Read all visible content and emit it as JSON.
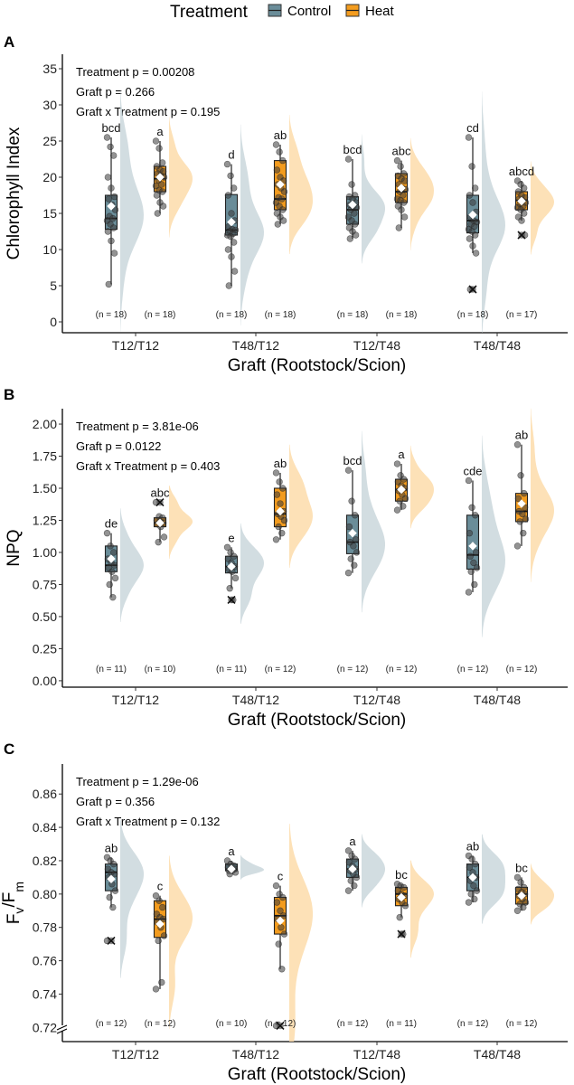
{
  "legend": {
    "title": "Treatment",
    "items": [
      {
        "label": "Control",
        "color": "#6a8d99"
      },
      {
        "label": "Heat",
        "color": "#f39c1f"
      }
    ]
  },
  "colors": {
    "control_fill": "#6a8d99",
    "heat_fill": "#f39c1f",
    "control_violin": "#c7d5da",
    "heat_violin": "#fcd9a5"
  },
  "chart_data": [
    {
      "type": "boxplot",
      "panel": "A",
      "ylabel": "Chlorophyll Index",
      "xlabel": "Graft (Rootstock/Scion)",
      "ylim": [
        -1.5,
        37
      ],
      "yticks": [
        0,
        5,
        10,
        15,
        20,
        25,
        30,
        35
      ],
      "ytick_labels": [
        "0",
        "5",
        "10",
        "15",
        "20",
        "25",
        "30",
        "35"
      ],
      "axis_break": false,
      "stats": [
        "Treatment p = 0.00208",
        "Graft p = 0.266",
        "Graft x Treatment p =  0.195"
      ],
      "categories": [
        "T12/T12",
        "T48/T12",
        "T12/T48",
        "T48/T48"
      ],
      "groups": [
        {
          "category": "T12/T12",
          "treatment": "Control",
          "q1": 12.8,
          "median": 14.3,
          "q3": 17.5,
          "whisker_low": 5.2,
          "whisker_high": 25.5,
          "mean": 16.0,
          "outliers": [],
          "letter": "bcd",
          "n_label": "(n = 18)",
          "points": [
            25.5,
            24.2,
            23.0,
            20.0,
            18.5,
            17.3,
            17.0,
            16.2,
            15.5,
            14.6,
            14.3,
            14.0,
            13.5,
            13.0,
            12.5,
            11.2,
            9.5,
            5.2
          ]
        },
        {
          "category": "T12/T12",
          "treatment": "Heat",
          "q1": 18.0,
          "median": 19.8,
          "q3": 21.5,
          "whisker_low": 15.0,
          "whisker_high": 25.0,
          "mean": 20.0,
          "outliers": [],
          "letter": "a",
          "n_label": "(n = 18)",
          "points": [
            25.0,
            24.0,
            22.0,
            21.5,
            21.0,
            20.8,
            20.5,
            20.2,
            20.0,
            19.6,
            19.0,
            18.8,
            18.2,
            18.0,
            17.5,
            16.5,
            16.0,
            15.0
          ]
        },
        {
          "category": "T48/T12",
          "treatment": "Control",
          "q1": 12.0,
          "median": 12.7,
          "q3": 17.6,
          "whisker_low": 5.0,
          "whisker_high": 21.8,
          "mean": 13.8,
          "outliers": [],
          "letter": "d",
          "n_label": "(n = 18)",
          "points": [
            21.8,
            20.2,
            18.5,
            17.5,
            15.0,
            14.0,
            13.2,
            12.8,
            12.7,
            12.5,
            12.2,
            12.0,
            11.8,
            11.0,
            10.0,
            9.0,
            7.0,
            5.0
          ]
        },
        {
          "category": "T48/T12",
          "treatment": "Heat",
          "q1": 15.5,
          "median": 17.0,
          "q3": 22.3,
          "whisker_low": 13.5,
          "whisker_high": 24.5,
          "mean": 19.0,
          "outliers": [],
          "letter": "ab",
          "n_label": "(n = 18)",
          "points": [
            24.5,
            23.5,
            22.3,
            21.0,
            20.0,
            19.5,
            19.0,
            18.5,
            18.0,
            17.2,
            17.0,
            16.5,
            16.0,
            15.5,
            15.0,
            14.5,
            14.0,
            13.5
          ]
        },
        {
          "category": "T12/T48",
          "treatment": "Control",
          "q1": 13.5,
          "median": 15.5,
          "q3": 17.3,
          "whisker_low": 11.5,
          "whisker_high": 22.5,
          "mean": 16.2,
          "outliers": [],
          "letter": "bcd",
          "n_label": "(n = 18)",
          "points": [
            22.5,
            19.0,
            17.5,
            17.3,
            17.0,
            16.5,
            16.2,
            16.0,
            15.8,
            15.5,
            15.0,
            14.5,
            14.0,
            13.5,
            13.0,
            12.5,
            12.0,
            11.5
          ]
        },
        {
          "category": "T12/T48",
          "treatment": "Heat",
          "q1": 16.5,
          "median": 18.0,
          "q3": 20.5,
          "whisker_low": 13.0,
          "whisker_high": 22.3,
          "mean": 18.5,
          "outliers": [],
          "letter": "abc",
          "n_label": "(n = 18)",
          "points": [
            22.3,
            21.5,
            20.5,
            20.2,
            19.8,
            19.5,
            19.0,
            18.5,
            18.3,
            18.0,
            17.5,
            17.0,
            16.8,
            16.5,
            16.0,
            15.5,
            14.5,
            13.0
          ]
        },
        {
          "category": "T48/T48",
          "treatment": "Control",
          "q1": 12.3,
          "median": 14.0,
          "q3": 17.5,
          "whisker_low": 9.5,
          "whisker_high": 25.5,
          "mean": 14.8,
          "outliers": [
            4.5
          ],
          "letter": "cd",
          "n_label": "(n = 18)",
          "points": [
            25.5,
            21.5,
            18.5,
            17.5,
            16.5,
            15.2,
            14.5,
            14.0,
            13.8,
            13.5,
            13.2,
            12.8,
            12.5,
            12.0,
            11.5,
            10.5,
            9.5,
            4.5
          ]
        },
        {
          "category": "T48/T48",
          "treatment": "Heat",
          "q1": 15.5,
          "median": 16.8,
          "q3": 18.0,
          "whisker_low": 14.0,
          "whisker_high": 19.5,
          "mean": 16.7,
          "outliers": [
            12.0
          ],
          "letter": "abcd",
          "n_label": "(n = 17)",
          "points": [
            19.5,
            19.0,
            18.5,
            18.0,
            17.5,
            17.2,
            17.0,
            16.8,
            16.5,
            16.3,
            16.0,
            15.8,
            15.5,
            15.0,
            14.5,
            14.0,
            12.0
          ]
        }
      ]
    },
    {
      "type": "boxplot",
      "panel": "B",
      "ylabel": "NPQ",
      "xlabel": "Graft (Rootstock/Scion)",
      "ylim": [
        -0.05,
        2.12
      ],
      "yticks": [
        0,
        0.25,
        0.5,
        0.75,
        1.0,
        1.25,
        1.5,
        1.75,
        2.0
      ],
      "ytick_labels": [
        "0.00",
        "0.25",
        "0.50",
        "0.75",
        "1.00",
        "1.25",
        "1.50",
        "1.75",
        "2.00"
      ],
      "axis_break": false,
      "stats": [
        "Treatment p = 3.81e-06",
        "Graft p = 0.0122",
        "Graft x Treatment p =  0.403"
      ],
      "categories": [
        "T12/T12",
        "T48/T12",
        "T12/T48",
        "T48/T48"
      ],
      "groups": [
        {
          "category": "T12/T12",
          "treatment": "Control",
          "q1": 0.85,
          "median": 0.9,
          "q3": 1.05,
          "whisker_low": 0.65,
          "whisker_high": 1.15,
          "mean": 0.95,
          "outliers": [],
          "letter": "de",
          "n_label": "(n = 11)",
          "points": [
            1.15,
            1.05,
            1.0,
            0.95,
            0.92,
            0.9,
            0.88,
            0.85,
            0.8,
            0.75,
            0.65
          ]
        },
        {
          "category": "T12/T12",
          "treatment": "Heat",
          "q1": 1.2,
          "median": 1.23,
          "q3": 1.27,
          "whisker_low": 1.08,
          "whisker_high": 1.28,
          "mean": 1.23,
          "outliers": [
            1.39
          ],
          "letter": "abc",
          "n_label": "(n = 10)",
          "points": [
            1.39,
            1.28,
            1.27,
            1.25,
            1.24,
            1.23,
            1.22,
            1.2,
            1.12,
            1.08
          ]
        },
        {
          "category": "T48/T12",
          "treatment": "Control",
          "q1": 0.84,
          "median": 0.89,
          "q3": 0.97,
          "whisker_low": 0.72,
          "whisker_high": 1.04,
          "mean": 0.89,
          "outliers": [
            0.63
          ],
          "letter": "e",
          "n_label": "(n = 11)",
          "points": [
            1.04,
            1.0,
            0.97,
            0.95,
            0.92,
            0.89,
            0.87,
            0.85,
            0.8,
            0.72,
            0.63
          ]
        },
        {
          "category": "T48/T12",
          "treatment": "Heat",
          "q1": 1.2,
          "median": 1.3,
          "q3": 1.5,
          "whisker_low": 1.1,
          "whisker_high": 1.62,
          "mean": 1.32,
          "outliers": [],
          "letter": "ab",
          "n_label": "(n = 12)",
          "points": [
            1.62,
            1.55,
            1.5,
            1.45,
            1.38,
            1.32,
            1.3,
            1.28,
            1.25,
            1.2,
            1.15,
            1.1
          ]
        },
        {
          "category": "T12/T48",
          "treatment": "Control",
          "q1": 0.99,
          "median": 1.08,
          "q3": 1.29,
          "whisker_low": 0.84,
          "whisker_high": 1.64,
          "mean": 1.15,
          "outliers": [],
          "letter": "bcd",
          "n_label": "(n = 12)",
          "points": [
            1.64,
            1.4,
            1.29,
            1.2,
            1.15,
            1.1,
            1.08,
            1.05,
            1.0,
            0.95,
            0.9,
            0.84
          ]
        },
        {
          "category": "T12/T48",
          "treatment": "Heat",
          "q1": 1.4,
          "median": 1.49,
          "q3": 1.57,
          "whisker_low": 1.33,
          "whisker_high": 1.69,
          "mean": 1.49,
          "outliers": [],
          "letter": "a",
          "n_label": "(n = 12)",
          "points": [
            1.69,
            1.6,
            1.57,
            1.55,
            1.52,
            1.5,
            1.48,
            1.45,
            1.42,
            1.4,
            1.36,
            1.33
          ]
        },
        {
          "category": "T48/T48",
          "treatment": "Control",
          "q1": 0.87,
          "median": 0.98,
          "q3": 1.29,
          "whisker_low": 0.69,
          "whisker_high": 1.56,
          "mean": 1.05,
          "outliers": [],
          "letter": "cde",
          "n_label": "(n = 12)",
          "points": [
            1.56,
            1.35,
            1.29,
            1.15,
            1.05,
            1.0,
            0.97,
            0.92,
            0.88,
            0.85,
            0.75,
            0.69
          ]
        },
        {
          "category": "T48/T48",
          "treatment": "Heat",
          "q1": 1.24,
          "median": 1.32,
          "q3": 1.46,
          "whisker_low": 1.05,
          "whisker_high": 1.84,
          "mean": 1.38,
          "outliers": [],
          "letter": "ab",
          "n_label": "(n = 12)",
          "points": [
            1.84,
            1.6,
            1.46,
            1.42,
            1.38,
            1.35,
            1.32,
            1.3,
            1.26,
            1.24,
            1.15,
            1.05
          ]
        }
      ]
    },
    {
      "type": "boxplot",
      "panel": "C",
      "ylabel_main": "F",
      "ylabel_sub1": "v",
      "ylabel_sep": "/F",
      "ylabel_sub2": "m",
      "xlabel": "Graft (Rootstock/Scion)",
      "ylim": [
        0.7115,
        0.878
      ],
      "yticks": [
        0.72,
        0.74,
        0.76,
        0.78,
        0.8,
        0.82,
        0.84,
        0.86
      ],
      "ytick_labels": [
        "0.72",
        "0.74",
        "0.76",
        "0.78",
        "0.80",
        "0.82",
        "0.84",
        "0.86"
      ],
      "axis_break": true,
      "stats": [
        "Treatment p = 1.29e-06",
        "Graft p = 0.356",
        "Graft x Treatment p =  0.132"
      ],
      "categories": [
        "T12/T12",
        "T48/T12",
        "T12/T48",
        "T48/T48"
      ],
      "groups": [
        {
          "category": "T12/T12",
          "treatment": "Control",
          "q1": 0.802,
          "median": 0.813,
          "q3": 0.818,
          "whisker_low": 0.792,
          "whisker_high": 0.822,
          "mean": 0.809,
          "outliers": [
            0.772
          ],
          "letter": "ab",
          "n_label": "(n = 12)",
          "points": [
            0.822,
            0.82,
            0.818,
            0.815,
            0.813,
            0.812,
            0.81,
            0.806,
            0.802,
            0.798,
            0.792,
            0.772
          ]
        },
        {
          "category": "T12/T12",
          "treatment": "Heat",
          "q1": 0.774,
          "median": 0.785,
          "q3": 0.796,
          "whisker_low": 0.743,
          "whisker_high": 0.799,
          "mean": 0.782,
          "outliers": [],
          "letter": "c",
          "n_label": "(n = 12)",
          "points": [
            0.799,
            0.796,
            0.792,
            0.788,
            0.786,
            0.785,
            0.783,
            0.78,
            0.775,
            0.772,
            0.747,
            0.743
          ]
        },
        {
          "category": "T48/T12",
          "treatment": "Control",
          "q1": 0.814,
          "median": 0.815,
          "q3": 0.818,
          "whisker_low": 0.812,
          "whisker_high": 0.82,
          "mean": 0.815,
          "outliers": [],
          "letter": "a",
          "n_label": "(n = 10)",
          "points": [
            0.82,
            0.818,
            0.817,
            0.816,
            0.815,
            0.815,
            0.814,
            0.814,
            0.813,
            0.812
          ]
        },
        {
          "category": "T48/T12",
          "treatment": "Heat",
          "q1": 0.776,
          "median": 0.787,
          "q3": 0.798,
          "whisker_low": 0.755,
          "whisker_high": 0.805,
          "mean": 0.784,
          "outliers": [
            0.721
          ],
          "letter": "c",
          "n_label": "(n = 12)",
          "points": [
            0.805,
            0.8,
            0.798,
            0.795,
            0.79,
            0.787,
            0.785,
            0.78,
            0.776,
            0.77,
            0.755,
            0.721
          ]
        },
        {
          "category": "T12/T48",
          "treatment": "Control",
          "q1": 0.81,
          "median": 0.815,
          "q3": 0.821,
          "whisker_low": 0.802,
          "whisker_high": 0.826,
          "mean": 0.815,
          "outliers": [],
          "letter": "a",
          "n_label": "(n = 12)",
          "points": [
            0.826,
            0.823,
            0.821,
            0.819,
            0.817,
            0.815,
            0.814,
            0.812,
            0.81,
            0.808,
            0.805,
            0.802
          ]
        },
        {
          "category": "T12/T48",
          "treatment": "Heat",
          "q1": 0.793,
          "median": 0.8,
          "q3": 0.804,
          "whisker_low": 0.786,
          "whisker_high": 0.806,
          "mean": 0.798,
          "outliers": [
            0.776
          ],
          "letter": "bc",
          "n_label": "(n = 11)",
          "points": [
            0.806,
            0.805,
            0.804,
            0.802,
            0.8,
            0.799,
            0.797,
            0.795,
            0.793,
            0.786,
            0.776
          ]
        },
        {
          "category": "T48/T48",
          "treatment": "Control",
          "q1": 0.802,
          "median": 0.81,
          "q3": 0.818,
          "whisker_low": 0.795,
          "whisker_high": 0.823,
          "mean": 0.81,
          "outliers": [],
          "letter": "ab",
          "n_label": "(n = 12)",
          "points": [
            0.823,
            0.821,
            0.818,
            0.816,
            0.813,
            0.81,
            0.808,
            0.805,
            0.802,
            0.8,
            0.797,
            0.795
          ]
        },
        {
          "category": "T48/T48",
          "treatment": "Heat",
          "q1": 0.794,
          "median": 0.8,
          "q3": 0.804,
          "whisker_low": 0.79,
          "whisker_high": 0.81,
          "mean": 0.799,
          "outliers": [],
          "letter": "bc",
          "n_label": "(n = 12)",
          "points": [
            0.81,
            0.807,
            0.804,
            0.803,
            0.801,
            0.8,
            0.799,
            0.797,
            0.795,
            0.794,
            0.792,
            0.79
          ]
        }
      ]
    }
  ]
}
